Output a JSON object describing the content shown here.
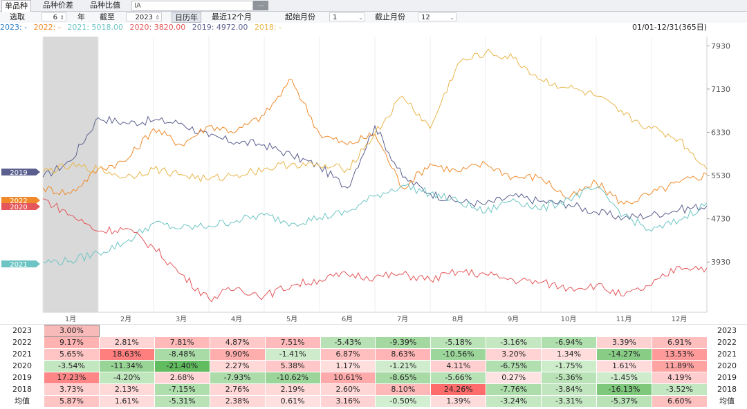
{
  "tabs": {
    "items": [
      "单品种",
      "品种价差",
      "品种比值"
    ],
    "active": 0,
    "input_value": "IA",
    "more_label": "..."
  },
  "controls": {
    "select_label": "选取",
    "years_value": "6",
    "year_unit": "年",
    "until_label": "截至",
    "until_value": "2023",
    "btn_calendar": "日历年",
    "btn_recent": "最近12个月",
    "start_month_label": "起始月份",
    "start_month_value": "1",
    "end_month_label": "截止月份",
    "end_month_value": "12"
  },
  "legend": {
    "items": [
      {
        "text": "2023: -",
        "color": "#2f7fc1"
      },
      {
        "text": "2022: -",
        "color": "#f08a2a"
      },
      {
        "text": "2021: 5018.00",
        "color": "#6ec4c4"
      },
      {
        "text": "2020: 3820.00",
        "color": "#e4575a"
      },
      {
        "text": "2019: 4972.00",
        "color": "#5b5f8e"
      },
      {
        "text": "2018: -",
        "color": "#e8b64a"
      }
    ],
    "range_text": "01/01-12/31(365日)"
  },
  "chart_data": {
    "type": "line",
    "title": "",
    "xlabel": "",
    "ylabel": "",
    "ylim": [
      3000,
      8100
    ],
    "yticks": [
      3930,
      4730,
      5530,
      6330,
      7130,
      7930
    ],
    "categories": [
      "1月",
      "2月",
      "3月",
      "4月",
      "5月",
      "6月",
      "7月",
      "8月",
      "9月",
      "10月",
      "11月",
      "12月"
    ],
    "x": [
      0,
      0.5,
      1,
      1.5,
      2,
      2.5,
      3,
      3.5,
      4,
      4.5,
      5,
      5.5,
      6,
      6.5,
      7,
      7.5,
      8,
      8.5,
      9,
      9.5,
      10,
      10.5,
      11,
      11.5,
      12
    ],
    "series": [
      {
        "name": "2019",
        "color": "#5b5f8e",
        "values": [
          5500,
          5800,
          6600,
          6500,
          6550,
          6500,
          6250,
          6150,
          6100,
          5900,
          5700,
          5300,
          6450,
          5500,
          5200,
          5050,
          5000,
          5150,
          5050,
          5000,
          4850,
          4750,
          4800,
          4900,
          4970
        ]
      },
      {
        "name": "2022",
        "color": "#f08a2a",
        "values": [
          5300,
          5200,
          5650,
          5800,
          6400,
          6100,
          6450,
          6350,
          6650,
          7300,
          6300,
          6100,
          6300,
          5300,
          5750,
          5600,
          5750,
          5500,
          5500,
          5100,
          5400,
          5000,
          5200,
          5400,
          5550
        ]
      },
      {
        "name": "2021",
        "color": "#6ec4c4",
        "values": [
          3930,
          3950,
          4100,
          4300,
          4650,
          4550,
          4600,
          4700,
          4800,
          4650,
          4750,
          4850,
          5150,
          5350,
          5200,
          5050,
          4850,
          5100,
          4900,
          5100,
          5300,
          4800,
          4500,
          4700,
          5020
        ]
      },
      {
        "name": "2020",
        "color": "#e4575a",
        "values": [
          5100,
          4800,
          4500,
          4550,
          4200,
          3700,
          3250,
          3450,
          3300,
          3500,
          3600,
          3700,
          3650,
          3700,
          3600,
          3750,
          3700,
          3600,
          3550,
          3450,
          3500,
          3300,
          3500,
          3850,
          3820
        ]
      },
      {
        "name": "2018",
        "color": "#e8b64a",
        "values": [
          5600,
          5700,
          5650,
          5500,
          5650,
          5550,
          5450,
          5550,
          5650,
          5750,
          5700,
          5650,
          6300,
          7000,
          6400,
          7600,
          7800,
          7700,
          7300,
          7150,
          7000,
          6650,
          6400,
          6200,
          5650
        ]
      }
    ],
    "end_labels": [
      "2019",
      "2022",
      "2020",
      "2021"
    ]
  },
  "table": {
    "years": [
      "2023",
      "2022",
      "2021",
      "2020",
      "2019",
      "2018",
      "均值"
    ],
    "rows": [
      [
        "3.00%",
        "",
        "",
        "",
        "",
        "",
        "",
        "",
        "",
        "",
        "",
        ""
      ],
      [
        "9.17%",
        "2.81%",
        "7.81%",
        "4.87%",
        "7.51%",
        "-5.43%",
        "-9.39%",
        "-5.18%",
        "-3.16%",
        "-6.94%",
        "3.39%",
        "6.91%"
      ],
      [
        "5.65%",
        "18.63%",
        "-8.48%",
        "9.90%",
        "-1.41%",
        "6.87%",
        "8.63%",
        "-10.56%",
        "3.20%",
        "1.34%",
        "-14.27%",
        "13.53%"
      ],
      [
        "-3.54%",
        "-11.34%",
        "-21.40%",
        "2.27%",
        "5.38%",
        "1.17%",
        "-1.21%",
        "4.11%",
        "-6.75%",
        "-1.75%",
        "1.61%",
        "11.89%"
      ],
      [
        "17.23%",
        "-4.20%",
        "2.68%",
        "-7.93%",
        "-10.62%",
        "10.61%",
        "-8.65%",
        "-5.66%",
        "0.27%",
        "-5.36%",
        "-1.45%",
        "4.19%"
      ],
      [
        "3.73%",
        "2.13%",
        "-7.15%",
        "2.76%",
        "2.19%",
        "2.60%",
        "8.10%",
        "24.26%",
        "-7.76%",
        "-3.84%",
        "-16.13%",
        "-3.52%"
      ],
      [
        "5.87%",
        "1.61%",
        "-5.31%",
        "2.38%",
        "0.61%",
        "3.16%",
        "-0.50%",
        "1.39%",
        "-3.24%",
        "-3.31%",
        "-5.37%",
        "6.60%"
      ]
    ]
  }
}
